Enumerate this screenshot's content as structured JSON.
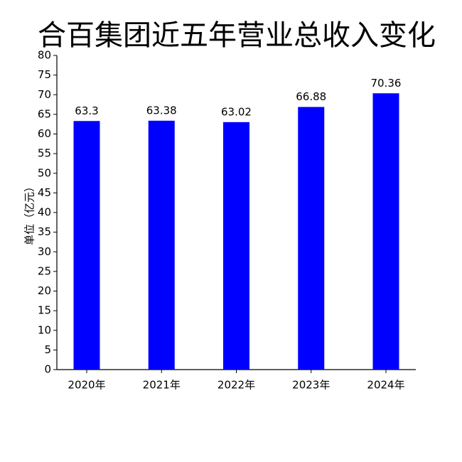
{
  "chart_data": {
    "type": "bar",
    "title": "合百集团近五年营业总收入变化",
    "y_label": "单位（亿元）",
    "categories": [
      "2020年",
      "2021年",
      "2022年",
      "2023年",
      "2024年"
    ],
    "values": [
      63.3,
      63.38,
      63.02,
      66.88,
      70.36
    ],
    "color": "#0000ff",
    "ylim": [
      0,
      80
    ],
    "yticks": [
      0,
      5,
      10,
      15,
      20,
      25,
      30,
      35,
      40,
      45,
      50,
      55,
      60,
      65,
      70,
      75,
      80
    ],
    "grid": false
  }
}
